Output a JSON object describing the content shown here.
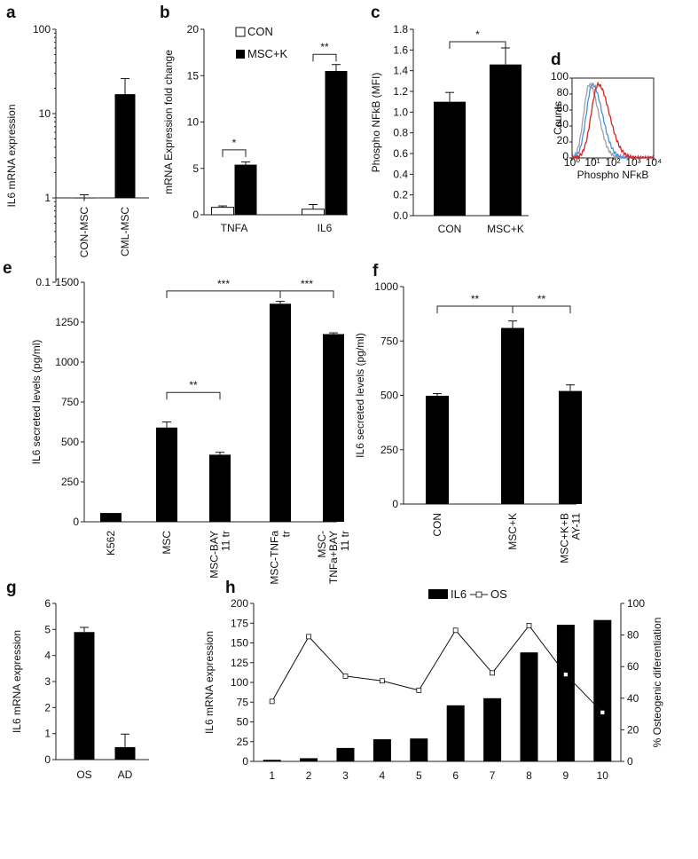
{
  "chart_data": [
    {
      "id": "a",
      "type": "bar",
      "panel_label": "a",
      "ylabel": "IL6 mRNA expression",
      "yscale": "log",
      "ylim": [
        0.1,
        100
      ],
      "yticks": [
        "0.1",
        "1",
        "10",
        "100"
      ],
      "categories": [
        "CON-MSC",
        "CML-MSC"
      ],
      "values": [
        0.92,
        17
      ],
      "errors": [
        0.15,
        9
      ],
      "bar_style": [
        "black",
        "black"
      ]
    },
    {
      "id": "b",
      "type": "bar",
      "panel_label": "b",
      "ylabel": "mRNA Expression fold change",
      "ylim": [
        0,
        20
      ],
      "yticks": [
        "0",
        "5",
        "10",
        "15",
        "20"
      ],
      "categories": [
        "TNFA",
        "IL6"
      ],
      "series": [
        {
          "name": "CON",
          "style": "white",
          "values": [
            0.8,
            0.6
          ],
          "errors": [
            0.15,
            0.5
          ]
        },
        {
          "name": "MSC+K",
          "style": "black",
          "values": [
            5.4,
            15.5
          ],
          "errors": [
            0.3,
            0.7
          ]
        }
      ],
      "significance": [
        {
          "groups": [
            "TNFA CON",
            "TNFA MSC+K"
          ],
          "label": "*"
        },
        {
          "groups": [
            "IL6 CON",
            "IL6 MSC+K"
          ],
          "label": "**"
        }
      ]
    },
    {
      "id": "c",
      "type": "bar",
      "panel_label": "c",
      "ylabel": "Phospho NFkB (MFI)",
      "ylim": [
        0,
        1.8
      ],
      "yticks": [
        "0.0",
        "0.2",
        "0.4",
        "0.6",
        "0.8",
        "1.0",
        "1.2",
        "1.4",
        "1.6",
        "1.8"
      ],
      "categories": [
        "CON",
        "MSC+K"
      ],
      "values": [
        1.1,
        1.46
      ],
      "errors": [
        0.09,
        0.16
      ],
      "significance": [
        {
          "groups": [
            "CON",
            "MSC+K"
          ],
          "label": "*"
        }
      ]
    },
    {
      "id": "d",
      "type": "line",
      "panel_label": "d",
      "ylabel": "Counts",
      "xlabel": "Phospho NFκB",
      "xscale": "log",
      "ylim": [
        0,
        100
      ],
      "yticks": [
        "0",
        "20",
        "40",
        "60",
        "80",
        "100"
      ],
      "xticks": [
        "10⁰",
        "10¹",
        "10²",
        "10³",
        "10⁴"
      ],
      "series": [
        {
          "name": "grey",
          "color": "#a0a0a0",
          "peak_log_x": 0.85,
          "width": 0.28
        },
        {
          "name": "blue",
          "color": "#4a8fe0",
          "peak_log_x": 1.0,
          "width": 0.3
        },
        {
          "name": "red",
          "color": "#e02020",
          "peak_log_x": 1.28,
          "width": 0.34
        }
      ]
    },
    {
      "id": "e",
      "type": "bar",
      "panel_label": "e",
      "ylabel": "IL6 secreted levels (pg/ml)",
      "ylim": [
        0,
        1500
      ],
      "yticks": [
        "0",
        "250",
        "500",
        "750",
        "1000",
        "1250",
        "1500"
      ],
      "categories": [
        "K562",
        "MSC",
        "MSC-BAY 11 tr",
        "MSC-TNFa tr",
        "MSC-TNFa+BAY 11 tr"
      ],
      "category_lines": [
        [
          "K562"
        ],
        [
          "MSC"
        ],
        [
          "MSC-BAY",
          "11 tr"
        ],
        [
          "MSC-TNFa",
          "tr"
        ],
        [
          "MSC-",
          "TNFa+BAY",
          "11 tr"
        ]
      ],
      "values": [
        55,
        590,
        420,
        1365,
        1175
      ],
      "errors": [
        0,
        35,
        15,
        15,
        8
      ],
      "significance": [
        {
          "groups": [
            "MSC",
            "MSC-BAY 11 tr"
          ],
          "label": "**"
        },
        {
          "groups": [
            "MSC",
            "MSC-TNFa tr"
          ],
          "label": "***"
        },
        {
          "groups": [
            "MSC-TNFa tr",
            "MSC-TNFa+BAY 11 tr"
          ],
          "label": "***"
        }
      ]
    },
    {
      "id": "f",
      "type": "bar",
      "panel_label": "f",
      "ylabel": "IL6 secreted levels (pg/ml)",
      "ylim": [
        0,
        1000
      ],
      "yticks": [
        "0",
        "250",
        "500",
        "750",
        "1000"
      ],
      "categories": [
        "CON",
        "MSC+K",
        "MSC+K+BAY-11"
      ],
      "category_lines": [
        [
          "CON"
        ],
        [
          "MSC+K"
        ],
        [
          "MSC+K+B",
          "AY-11"
        ]
      ],
      "values": [
        498,
        810,
        520
      ],
      "errors": [
        10,
        32,
        28
      ],
      "significance": [
        {
          "groups": [
            "CON",
            "MSC+K"
          ],
          "label": "**"
        },
        {
          "groups": [
            "MSC+K",
            "MSC+K+BAY-11"
          ],
          "label": "**"
        }
      ]
    },
    {
      "id": "g",
      "type": "bar",
      "panel_label": "g",
      "ylabel": "IL6 mRNA expression",
      "ylim": [
        0,
        6
      ],
      "yticks": [
        "0",
        "1",
        "2",
        "3",
        "4",
        "5",
        "6"
      ],
      "categories": [
        "OS",
        "AD"
      ],
      "values": [
        4.9,
        0.48
      ],
      "errors": [
        0.18,
        0.5
      ]
    },
    {
      "id": "h",
      "type": "bar",
      "panel_label": "h",
      "ylabel": "IL6 mRNA expression",
      "y2label": "% Osteogenic diferentiation",
      "ylim": [
        0,
        200
      ],
      "y2lim": [
        0,
        100
      ],
      "yticks": [
        "0",
        "25",
        "50",
        "75",
        "100",
        "125",
        "150",
        "175",
        "200"
      ],
      "y2ticks": [
        "0",
        "20",
        "40",
        "60",
        "80",
        "100"
      ],
      "categories": [
        "1",
        "2",
        "3",
        "4",
        "5",
        "6",
        "7",
        "8",
        "9",
        "10"
      ],
      "series": [
        {
          "name": "IL6",
          "type": "bar",
          "axis": "left",
          "values": [
            2,
            4,
            17,
            28,
            29,
            71,
            80,
            138,
            173,
            179
          ]
        },
        {
          "name": "OS",
          "type": "line",
          "axis": "right",
          "values": [
            38,
            79,
            54,
            51,
            45,
            83,
            56,
            86,
            55,
            31
          ]
        }
      ]
    }
  ]
}
